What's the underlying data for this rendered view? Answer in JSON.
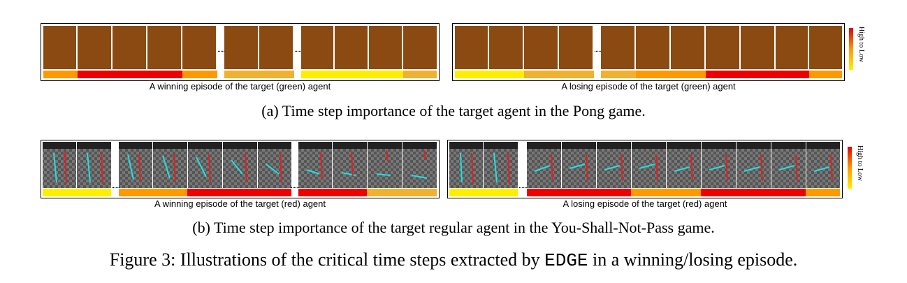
{
  "panel_a": {
    "win_label": "A winning episode of the target (green) agent",
    "lose_label": "A losing episode of the target (green) agent",
    "caption": "(a)  Time step importance of the target agent in the Pong game."
  },
  "panel_b": {
    "win_label": "A winning episode of the target (red) agent",
    "lose_label": "A losing episode of the target (red) agent",
    "caption": "(b)  Time step importance of the target regular agent in the You-Shall-Not-Pass game."
  },
  "legend": {
    "label": "High to Low"
  },
  "figure": {
    "prefix": "Figure 3: Illustrations of the critical time steps extracted by ",
    "method": "EDGE",
    "suffix": " in a winning/losing episode."
  },
  "dots": "......",
  "colors": {
    "red": "#ee0000",
    "orange": "#ff9900",
    "gold": "#f0b030",
    "yellow": "#ffee00",
    "pong_bg": "#8b4a12"
  }
}
